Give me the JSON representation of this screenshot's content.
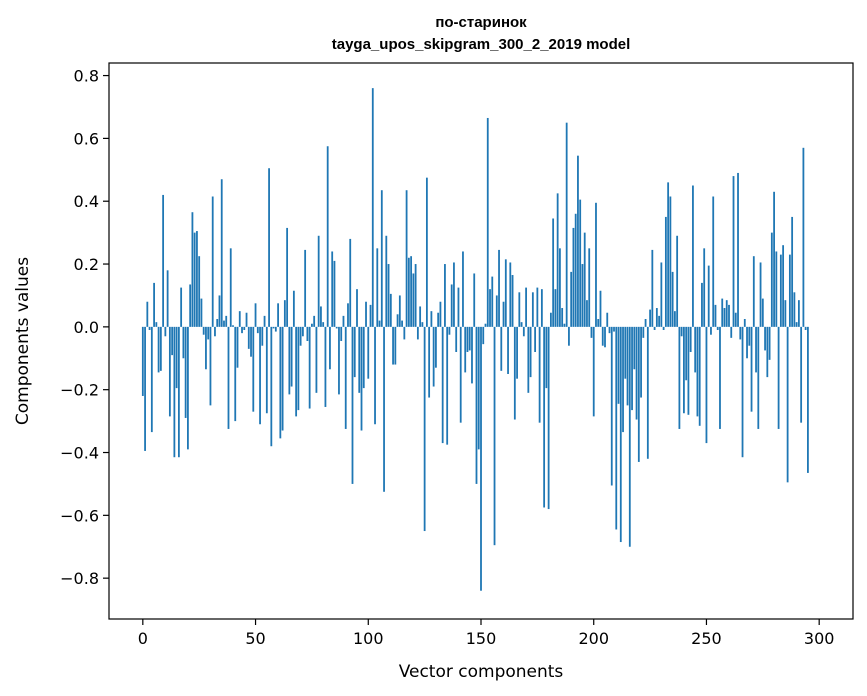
{
  "chart_data": {
    "type": "bar",
    "title_lines": [
      "по-старинок",
      "tayga_upos_skipgram_300_2_2019 model"
    ],
    "xlabel": "Vector components",
    "ylabel": "Components values",
    "xlim": [
      -15,
      315
    ],
    "ylim": [
      -0.93,
      0.84
    ],
    "xticks": [
      0,
      50,
      100,
      150,
      200,
      250,
      300
    ],
    "xtick_labels": [
      "0",
      "50",
      "100",
      "150",
      "200",
      "250",
      "300"
    ],
    "yticks": [
      0.8,
      0.6,
      0.4,
      0.2,
      0.0,
      -0.2,
      -0.4,
      -0.6,
      -0.8
    ],
    "ytick_labels": [
      "0.8",
      "0.6",
      "0.4",
      "0.2",
      "0.0",
      "−0.2",
      "−0.4",
      "−0.6",
      "−0.8"
    ],
    "bar_color": "#1f77b4",
    "values": [
      -0.22,
      -0.395,
      0.08,
      -0.01,
      -0.335,
      0.14,
      0.015,
      -0.145,
      -0.14,
      0.42,
      -0.03,
      0.18,
      -0.285,
      -0.09,
      -0.415,
      -0.195,
      -0.415,
      0.125,
      -0.1,
      -0.29,
      -0.39,
      0.135,
      0.365,
      0.3,
      0.305,
      0.225,
      0.09,
      -0.025,
      -0.135,
      -0.04,
      -0.25,
      0.415,
      -0.03,
      0.025,
      0.1,
      0.47,
      0.02,
      0.035,
      -0.325,
      0.25,
      0.005,
      -0.3,
      -0.13,
      0.05,
      -0.02,
      -0.01,
      0.045,
      -0.07,
      -0.095,
      -0.27,
      0.075,
      -0.02,
      -0.31,
      -0.06,
      0.035,
      -0.275,
      0.505,
      -0.38,
      -0.005,
      -0.015,
      0.075,
      -0.355,
      -0.33,
      0.085,
      0.315,
      -0.215,
      -0.19,
      0.115,
      -0.285,
      -0.265,
      -0.06,
      -0.03,
      0.245,
      -0.045,
      -0.26,
      0.01,
      0.035,
      -0.21,
      0.29,
      0.065,
      0.015,
      -0.255,
      0.575,
      -0.135,
      0.24,
      0.21,
      -0.005,
      -0.215,
      -0.045,
      0.035,
      -0.325,
      0.075,
      0.28,
      -0.5,
      -0.16,
      0.12,
      -0.21,
      -0.33,
      -0.195,
      0.08,
      -0.165,
      0.07,
      0.76,
      -0.31,
      0.25,
      0.02,
      0.435,
      -0.525,
      0.29,
      0.2,
      0.105,
      -0.12,
      -0.12,
      0.04,
      0.1,
      0.02,
      -0.04,
      0.435,
      0.22,
      0.225,
      0.17,
      0.2,
      -0.04,
      0.065,
      0.015,
      -0.65,
      0.475,
      -0.225,
      0.05,
      -0.19,
      -0.13,
      0.045,
      0.08,
      -0.37,
      0.2,
      -0.375,
      -0.025,
      0.135,
      0.205,
      -0.08,
      0.125,
      -0.305,
      0.24,
      -0.145,
      -0.08,
      -0.075,
      -0.18,
      0.17,
      -0.5,
      -0.39,
      -0.84,
      -0.055,
      0.01,
      0.665,
      0.12,
      0.16,
      -0.695,
      0.1,
      0.245,
      -0.14,
      0.08,
      0.215,
      -0.15,
      0.205,
      0.165,
      -0.295,
      -0.165,
      0.11,
      0.015,
      -0.03,
      0.125,
      -0.21,
      -0.16,
      0.11,
      -0.08,
      0.125,
      -0.305,
      0.12,
      -0.575,
      -0.195,
      -0.58,
      0.045,
      0.345,
      0.12,
      0.425,
      0.25,
      0.06,
      0.01,
      0.65,
      -0.06,
      0.175,
      0.315,
      0.36,
      0.545,
      0.405,
      0.2,
      0.3,
      0.085,
      0.25,
      -0.035,
      -0.285,
      0.395,
      0.025,
      0.115,
      -0.06,
      -0.065,
      0.045,
      -0.02,
      -0.505,
      -0.015,
      -0.645,
      -0.245,
      -0.685,
      -0.335,
      -0.165,
      -0.25,
      -0.7,
      -0.265,
      -0.135,
      -0.295,
      -0.43,
      -0.225,
      -0.035,
      0.025,
      -0.42,
      0.055,
      0.245,
      -0.01,
      0.06,
      0.035,
      0.205,
      -0.01,
      0.35,
      0.46,
      0.415,
      0.175,
      0.05,
      0.29,
      -0.325,
      -0.03,
      -0.275,
      -0.17,
      -0.28,
      -0.08,
      0.45,
      -0.145,
      -0.285,
      -0.315,
      0.14,
      0.25,
      -0.37,
      0.195,
      -0.025,
      0.415,
      0.07,
      -0.01,
      -0.325,
      0.09,
      0.06,
      0.085,
      0.07,
      -0.035,
      0.48,
      0.045,
      0.49,
      -0.04,
      -0.415,
      0.025,
      -0.1,
      -0.06,
      -0.27,
      0.225,
      -0.145,
      -0.325,
      0.205,
      0.09,
      -0.075,
      -0.16,
      -0.105,
      0.3,
      0.43,
      0.24,
      -0.325,
      0.23,
      0.26,
      0.085,
      -0.495,
      0.23,
      0.35,
      0.11,
      0.015,
      0.085,
      -0.305,
      0.57,
      -0.01,
      -0.465
    ]
  }
}
